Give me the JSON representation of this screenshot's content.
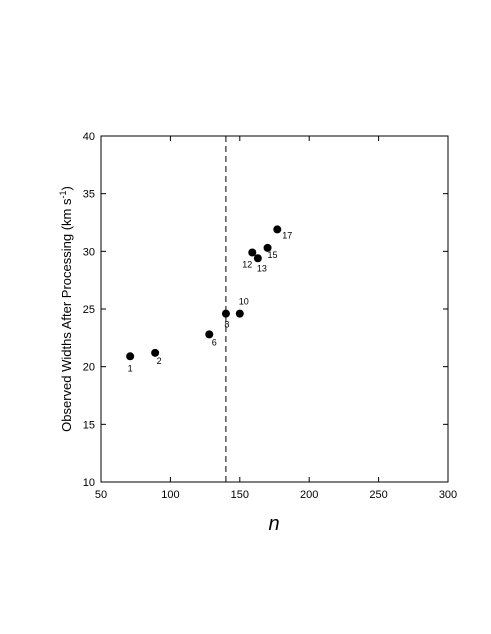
{
  "chart_data": {
    "type": "scatter",
    "title": "",
    "xlabel": "n",
    "ylabel": {
      "text": "Observed Widths After Processing (km s",
      "superscript": "-1",
      "close": ")"
    },
    "xlim": [
      50,
      300
    ],
    "ylim": [
      10,
      40
    ],
    "xticks": [
      50,
      100,
      150,
      200,
      250,
      300
    ],
    "yticks": [
      10,
      15,
      20,
      25,
      30,
      35,
      40
    ],
    "grid": false,
    "legend": "none",
    "reference_line": {
      "x": 140,
      "style": "dashed"
    },
    "points": [
      {
        "label": "1",
        "x": 71,
        "y": 20.9
      },
      {
        "label": "2",
        "x": 89,
        "y": 21.2
      },
      {
        "label": "6",
        "x": 128,
        "y": 22.8
      },
      {
        "label": "8",
        "x": 140,
        "y": 24.6
      },
      {
        "label": "10",
        "x": 150,
        "y": 24.6
      },
      {
        "label": "12",
        "x": 159,
        "y": 29.9
      },
      {
        "label": "13",
        "x": 163,
        "y": 29.4
      },
      {
        "label": "15",
        "x": 170,
        "y": 30.3
      },
      {
        "label": "17",
        "x": 177,
        "y": 31.9
      }
    ]
  }
}
